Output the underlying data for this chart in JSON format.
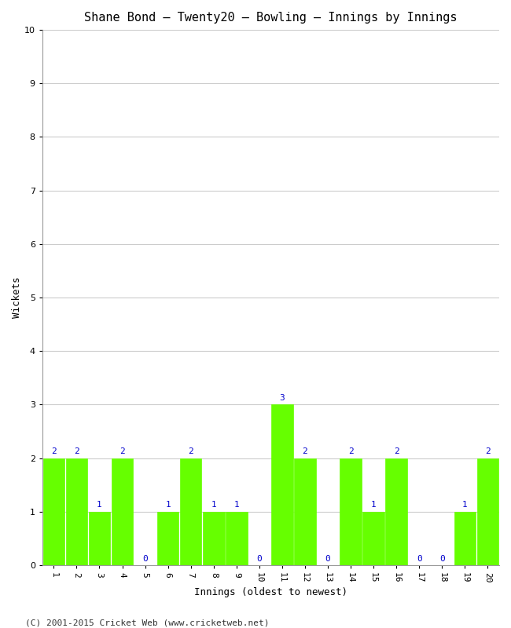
{
  "title": "Shane Bond – Twenty20 – Bowling – Innings by Innings",
  "xlabel": "Innings (oldest to newest)",
  "ylabel": "Wickets",
  "categories": [
    1,
    2,
    3,
    4,
    5,
    6,
    7,
    8,
    9,
    10,
    11,
    12,
    13,
    14,
    15,
    16,
    17,
    18,
    19,
    20
  ],
  "values": [
    2,
    2,
    1,
    2,
    0,
    1,
    2,
    1,
    1,
    0,
    3,
    2,
    0,
    2,
    1,
    2,
    0,
    0,
    1,
    2
  ],
  "bar_color": "#66ff00",
  "bar_edge_color": "#66ff00",
  "ylim": [
    0,
    10
  ],
  "yticks": [
    0,
    1,
    2,
    3,
    4,
    5,
    6,
    7,
    8,
    9,
    10
  ],
  "background_color": "#ffffff",
  "grid_color": "#cccccc",
  "label_color": "#0000cc",
  "title_fontsize": 11,
  "axis_label_fontsize": 9,
  "tick_fontsize": 8,
  "bar_label_fontsize": 8,
  "footer": "(C) 2001-2015 Cricket Web (www.cricketweb.net)"
}
